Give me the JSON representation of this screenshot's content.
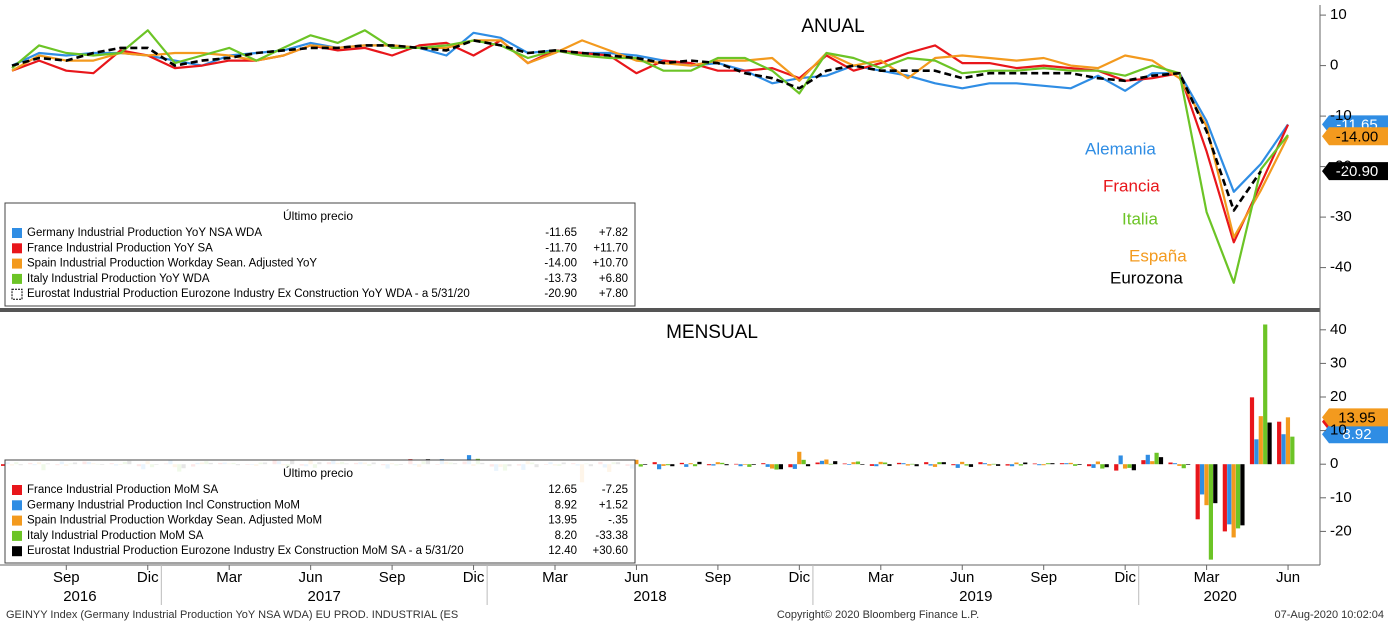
{
  "chart_data": [
    {
      "type": "line",
      "title": "ANUAL",
      "legend_title": "Último precio",
      "x": [
        "2016-07",
        "2016-08",
        "2016-09",
        "2016-10",
        "2016-11",
        "2016-12",
        "2017-01",
        "2017-02",
        "2017-03",
        "2017-04",
        "2017-05",
        "2017-06",
        "2017-07",
        "2017-08",
        "2017-09",
        "2017-10",
        "2017-11",
        "2017-12",
        "2018-01",
        "2018-02",
        "2018-03",
        "2018-04",
        "2018-05",
        "2018-06",
        "2018-07",
        "2018-08",
        "2018-09",
        "2018-10",
        "2018-11",
        "2018-12",
        "2019-01",
        "2019-02",
        "2019-03",
        "2019-04",
        "2019-05",
        "2019-06",
        "2019-07",
        "2019-08",
        "2019-09",
        "2019-10",
        "2019-11",
        "2019-12",
        "2020-01",
        "2020-02",
        "2020-03",
        "2020-04",
        "2020-05",
        "2020-06"
      ],
      "ylim": [
        -48,
        12
      ],
      "yticks": [
        10,
        0,
        -10,
        -20,
        -30,
        -40
      ],
      "series": [
        {
          "name": "Germany Industrial Production YoY NSA WDA",
          "color": "#2f8de4",
          "last": "-11.65",
          "change": "+7.82",
          "tag": true,
          "values": [
            0,
            2.5,
            2,
            2.5,
            2.5,
            2,
            1,
            0,
            2,
            2.5,
            3,
            4.5,
            3.5,
            4,
            4,
            3.5,
            2,
            6.5,
            5.5,
            2.5,
            3,
            2.5,
            2.5,
            2,
            1,
            0,
            0.5,
            -1,
            -3.5,
            -2.5,
            -2,
            0,
            -1,
            -2,
            -3.5,
            -4.5,
            -3.5,
            -3.5,
            -4,
            -4.5,
            -2,
            -5,
            -1.5,
            -1.5,
            -11,
            -25,
            -19.47,
            -11.65
          ]
        },
        {
          "name": "France Industrial Production YoY SA",
          "color": "#e8161b",
          "last": "-11.70",
          "change": "+11.70",
          "tag": false,
          "values": [
            -1,
            1,
            -1,
            -1.5,
            3,
            2,
            -0.5,
            0,
            1,
            1,
            2,
            4,
            3,
            3.5,
            2,
            4,
            4.5,
            2,
            5,
            0.5,
            3,
            2.5,
            2,
            -1.5,
            1,
            0.5,
            -1,
            -1,
            -0.5,
            -2.5,
            2,
            -1,
            0.5,
            2.5,
            4,
            0.5,
            0.5,
            -0.5,
            0,
            -0.5,
            -1,
            -3,
            -2.5,
            -1.5,
            -17,
            -35,
            -23.4,
            -11.7
          ]
        },
        {
          "name": "Spain Industrial Production Workday Sean. Adjusted YoY",
          "color": "#f39a1e",
          "last": "-14.00",
          "change": "+10.70",
          "tag": true,
          "values": [
            -1,
            2,
            1,
            1,
            2.5,
            2,
            2.5,
            2.5,
            2,
            1,
            2,
            4,
            3.5,
            4,
            4,
            3.5,
            3.5,
            5,
            5,
            0.5,
            2.5,
            5,
            3,
            1,
            0.5,
            0,
            1,
            1,
            1.5,
            -3,
            2.5,
            0,
            1,
            -2.5,
            1.5,
            2,
            1.5,
            1,
            1.5,
            0,
            -0.5,
            2,
            1,
            -2.5,
            -12,
            -34,
            -24.7,
            -14
          ]
        },
        {
          "name": "Italy Industrial Production YoY WDA",
          "color": "#6cc426",
          "last": "-13.73",
          "change": "+6.80",
          "tag": false,
          "values": [
            -0.5,
            4,
            2.5,
            2,
            2.5,
            7,
            0.5,
            2,
            3.5,
            1,
            3.5,
            6,
            4.5,
            7,
            3.5,
            3.5,
            4,
            5,
            4,
            1.5,
            3,
            2,
            1.5,
            1.5,
            -1,
            -1,
            1.5,
            1.5,
            -1,
            -5.5,
            2.5,
            1.5,
            -0.5,
            1.5,
            1,
            -1.5,
            -1,
            -1,
            -0.5,
            -1,
            -1,
            -2,
            0,
            -1.5,
            -29,
            -43,
            -20.53,
            -13.73
          ]
        },
        {
          "name": "Eurostat Industrial Production Eurozone Industry Ex Construction YoY WDA - a 5/31/20",
          "color": "#000000",
          "dash": true,
          "last": "-20.90",
          "change": "+7.80",
          "tag": true,
          "values": [
            0,
            1.5,
            1,
            2.5,
            3.5,
            3.5,
            0,
            1,
            1.5,
            2.5,
            3,
            3.5,
            3.5,
            4,
            4,
            3.5,
            3,
            5,
            4,
            2.5,
            3,
            2.5,
            2,
            1.5,
            0.5,
            1,
            0.5,
            -1.5,
            -2.5,
            -4.5,
            -1,
            0,
            -1,
            -1,
            -1,
            -2.5,
            -1.5,
            -1.5,
            -1.5,
            -1.5,
            -2.5,
            -3,
            -2,
            -1.5,
            -13,
            -28.7,
            -20.9,
            null
          ]
        }
      ],
      "annotations": [
        {
          "text": "Alemania",
          "color": "#2f8de4"
        },
        {
          "text": "Francia",
          "color": "#e8161b"
        },
        {
          "text": "Italia",
          "color": "#6cc426"
        },
        {
          "text": "España",
          "color": "#f39a1e"
        },
        {
          "text": "Eurozona",
          "color": "#000000"
        }
      ]
    },
    {
      "type": "bar",
      "title": "MENSUAL",
      "legend_title": "Último precio",
      "x": [
        "2016-07",
        "2016-08",
        "2016-09",
        "2016-10",
        "2016-11",
        "2016-12",
        "2017-01",
        "2017-02",
        "2017-03",
        "2017-04",
        "2017-05",
        "2017-06",
        "2017-07",
        "2017-08",
        "2017-09",
        "2017-10",
        "2017-11",
        "2017-12",
        "2018-01",
        "2018-02",
        "2018-03",
        "2018-04",
        "2018-05",
        "2018-06",
        "2018-07",
        "2018-08",
        "2018-09",
        "2018-10",
        "2018-11",
        "2018-12",
        "2019-01",
        "2019-02",
        "2019-03",
        "2019-04",
        "2019-05",
        "2019-06",
        "2019-07",
        "2019-08",
        "2019-09",
        "2019-10",
        "2019-11",
        "2019-12",
        "2020-01",
        "2020-02",
        "2020-03",
        "2020-04",
        "2020-05",
        "2020-06"
      ],
      "ylim": [
        -30,
        45
      ],
      "yticks": [
        40,
        30,
        20,
        10,
        0,
        -10,
        -20
      ],
      "xticks": [
        {
          "value": "2016-09",
          "label": "Sep"
        },
        {
          "value": "2016-12",
          "label": "Dic"
        },
        {
          "value": "2017-03",
          "label": "Mar"
        },
        {
          "value": "2017-06",
          "label": "Jun"
        },
        {
          "value": "2017-09",
          "label": "Sep"
        },
        {
          "value": "2017-12",
          "label": "Dic"
        },
        {
          "value": "2018-03",
          "label": "Mar"
        },
        {
          "value": "2018-06",
          "label": "Jun"
        },
        {
          "value": "2018-09",
          "label": "Sep"
        },
        {
          "value": "2018-12",
          "label": "Dic"
        },
        {
          "value": "2019-03",
          "label": "Mar"
        },
        {
          "value": "2019-06",
          "label": "Jun"
        },
        {
          "value": "2019-09",
          "label": "Sep"
        },
        {
          "value": "2019-12",
          "label": "Dic"
        },
        {
          "value": "2020-03",
          "label": "Mar"
        },
        {
          "value": "2020-06",
          "label": "Jun"
        }
      ],
      "year_ticks": [
        2016,
        2017,
        2018,
        2019,
        2020
      ],
      "series": [
        {
          "name": "France Industrial Production MoM SA",
          "color": "#e8161b",
          "last": "12.65",
          "change": "-7.25",
          "tag": true,
          "values": [
            -0.5,
            0.4,
            -0.3,
            0.8,
            0.3,
            -0.6,
            0.2,
            -0.7,
            0.4,
            -0.2,
            1.2,
            -0.4,
            0.6,
            0.4,
            -0.3,
            1.5,
            -0.2,
            0.8,
            -0.7,
            -0.4,
            -0.2,
            0.3,
            0.7,
            -0.5,
            0.6,
            0.4,
            -0.3,
            0.1,
            0.3,
            -0.9,
            0.5,
            0.2,
            -0.5,
            0.4,
            0.6,
            -0.3,
            0.6,
            -0.4,
            0.2,
            0.3,
            -0.6,
            -1.9,
            1.2,
            0.5,
            -16.4,
            -20,
            19.9,
            12.65
          ]
        },
        {
          "name": "Germany Industrial Production Incl Construction MoM",
          "color": "#2f8de4",
          "last": "8.92",
          "change": "+1.52",
          "tag": true,
          "values": [
            0.6,
            -0.3,
            0.8,
            0.7,
            -0.4,
            -1.5,
            1.2,
            0.4,
            0.5,
            -0.2,
            0.9,
            -0.6,
            1.1,
            0.6,
            -1.3,
            -0.3,
            1.5,
            2.7,
            -2,
            -1.7,
            0.6,
            -0.4,
            -1,
            -1.3,
            -1.5,
            -0.8,
            -0.4,
            -0.6,
            -0.8,
            -1.4,
            1,
            -0.2,
            -0.6,
            0.3,
            -0.4,
            -1.1,
            0.3,
            -0.6,
            -0.3,
            0.3,
            -1.1,
            2.6,
            2.8,
            0.3,
            -9,
            -17.9,
            7.4,
            8.92
          ]
        },
        {
          "name": "Spain Industrial Production Workday Sean. Adjusted MoM",
          "color": "#f39a1e",
          "last": "13.95",
          "change": "-.35",
          "tag": true,
          "values": [
            -0.4,
            0.6,
            -0.5,
            0.3,
            -0.2,
            0.9,
            -0.9,
            0.5,
            0.2,
            -0.5,
            -0.3,
            1.1,
            0.4,
            0.5,
            0.3,
            -0.8,
            0.7,
            -0.5,
            -0.8,
            0.9,
            -0.4,
            -5.4,
            -2.3,
            1.3,
            -0.5,
            0.3,
            0.6,
            -0.1,
            -1.3,
            3.7,
            1.4,
            0.6,
            0.7,
            -0.4,
            -0.8,
            0.7,
            -0.4,
            0.5,
            -0.3,
            0.4,
            0.8,
            -1.3,
            0.9,
            -0.5,
            -12.2,
            -21.8,
            14.3,
            13.95
          ]
        },
        {
          "name": "Italy Industrial Production MoM SA",
          "color": "#6cc426",
          "last": "8.20",
          "change": "-33.38",
          "tag": false,
          "values": [
            0.6,
            -1.8,
            0.2,
            0.1,
            0.7,
            -0.9,
            -2.2,
            0.9,
            0.4,
            0.5,
            -0.8,
            -1.1,
            0.7,
            -0.5,
            -0.4,
            0.9,
            0.5,
            1.6,
            -1.9,
            0.5,
            -0.5,
            0.2,
            0.6,
            -0.7,
            -0.3,
            -0.6,
            0.4,
            -0.8,
            -1.6,
            1.3,
            0.1,
            0.8,
            0.5,
            0.1,
            0.6,
            -0.4,
            0.1,
            -0.4,
            0.3,
            -0.5,
            -1.3,
            -1.1,
            3.4,
            -1.2,
            -28.4,
            -19.1,
            41.58,
            8.2
          ]
        },
        {
          "name": "Eurostat Industrial Production Eurozone Industry Ex Construction MoM SA - a 5/31/20",
          "color": "#000000",
          "last": "12.40",
          "change": "+30.60",
          "tag": false,
          "values": [
            -0.3,
            0.2,
            0.5,
            -0.2,
            1,
            -0.1,
            -1.2,
            0.4,
            -0.3,
            0.5,
            1.2,
            0.6,
            0.2,
            0.5,
            -0.2,
            1.5,
            0.3,
            0.4,
            -0.6,
            -0.9,
            0.5,
            -0.6,
            0.6,
            -0.1,
            -0.6,
            0.7,
            -0.3,
            -0.2,
            -1.5,
            -0.6,
            0.9,
            -0.1,
            -0.5,
            -0.6,
            0.6,
            -0.8,
            -0.5,
            0.5,
            0.3,
            -0.2,
            -0.9,
            -1.8,
            2.1,
            -0.1,
            -11.6,
            -18.2,
            12.4,
            null
          ]
        }
      ]
    }
  ],
  "footer": {
    "left": "GEINYY Index (Germany Industrial Production YoY NSA WDA) EU PROD. INDUSTRIAL (ES",
    "center": "Copyright© 2020 Bloomberg Finance L.P.",
    "right": "07-Aug-2020 10:02:04"
  }
}
